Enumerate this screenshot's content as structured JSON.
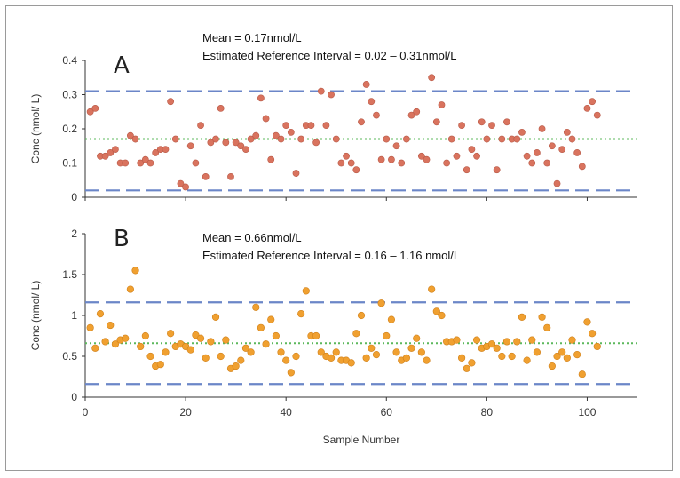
{
  "chart_data": [
    {
      "type": "scatter",
      "panel_letter": "A",
      "annotations": [
        "Mean = 0.17nmol/L",
        "Estimated Reference Interval = 0.02 – 0.31nmol/L"
      ],
      "ylabel": "Conc (nmol/ L)",
      "xlabel": "",
      "xlim": [
        0,
        110
      ],
      "ylim": [
        0,
        0.4
      ],
      "yticks": [
        "0",
        "0.1",
        "0.2",
        "0.3",
        "0.4"
      ],
      "reference_lines": [
        {
          "kind": "mean",
          "value": 0.17,
          "style": "dotted",
          "color": "#5cb85c"
        },
        {
          "kind": "upper",
          "value": 0.31,
          "style": "dashed",
          "color": "#6b86c8"
        },
        {
          "kind": "lower",
          "value": 0.02,
          "style": "dashed",
          "color": "#6b86c8"
        }
      ],
      "marker_color": "#d9735e",
      "x": [
        1,
        2,
        3,
        4,
        5,
        6,
        7,
        8,
        9,
        10,
        11,
        12,
        13,
        14,
        15,
        16,
        17,
        18,
        19,
        20,
        21,
        22,
        23,
        24,
        25,
        26,
        27,
        28,
        29,
        30,
        31,
        32,
        33,
        34,
        35,
        36,
        37,
        38,
        39,
        40,
        41,
        42,
        43,
        44,
        45,
        46,
        47,
        48,
        49,
        50,
        51,
        52,
        53,
        54,
        55,
        56,
        57,
        58,
        59,
        60,
        61,
        62,
        63,
        64,
        65,
        66,
        67,
        68,
        69,
        70,
        71,
        72,
        73,
        74,
        75,
        76,
        77,
        78,
        79,
        80,
        81,
        82,
        83,
        84,
        85,
        86,
        87,
        88,
        89,
        90,
        91,
        92,
        93,
        94,
        95,
        96,
        97,
        98,
        99,
        100,
        101,
        102
      ],
      "y": [
        0.25,
        0.26,
        0.12,
        0.12,
        0.13,
        0.14,
        0.1,
        0.1,
        0.18,
        0.17,
        0.1,
        0.11,
        0.1,
        0.13,
        0.14,
        0.14,
        0.28,
        0.17,
        0.04,
        0.03,
        0.15,
        0.1,
        0.21,
        0.06,
        0.16,
        0.17,
        0.26,
        0.16,
        0.06,
        0.16,
        0.15,
        0.14,
        0.17,
        0.18,
        0.29,
        0.23,
        0.11,
        0.18,
        0.17,
        0.21,
        0.19,
        0.07,
        0.17,
        0.21,
        0.21,
        0.16,
        0.31,
        0.21,
        0.3,
        0.17,
        0.1,
        0.12,
        0.1,
        0.08,
        0.22,
        0.33,
        0.28,
        0.24,
        0.11,
        0.17,
        0.11,
        0.15,
        0.1,
        0.17,
        0.24,
        0.25,
        0.12,
        0.11,
        0.35,
        0.22,
        0.27,
        0.1,
        0.17,
        0.12,
        0.21,
        0.08,
        0.14,
        0.12,
        0.22,
        0.17,
        0.21,
        0.08,
        0.17,
        0.22,
        0.17,
        0.17,
        0.19,
        0.12,
        0.1,
        0.13,
        0.2,
        0.1,
        0.15,
        0.04,
        0.14,
        0.19,
        0.17,
        0.13,
        0.09,
        0.26,
        0.28,
        0.24
      ]
    },
    {
      "type": "scatter",
      "panel_letter": "B",
      "annotations": [
        "Mean = 0.66nmol/L",
        "Estimated Reference Interval = 0.16 – 1.16 nmol/L"
      ],
      "ylabel": "Conc (nmol/ L)",
      "xlabel": "Sample Number",
      "xlim": [
        0,
        110
      ],
      "ylim": [
        0,
        2
      ],
      "yticks": [
        "0",
        "0.5",
        "1",
        "1.5",
        "2"
      ],
      "xticks": [
        "0",
        "20",
        "40",
        "60",
        "80",
        "100"
      ],
      "reference_lines": [
        {
          "kind": "mean",
          "value": 0.66,
          "style": "dotted",
          "color": "#5cb85c"
        },
        {
          "kind": "upper",
          "value": 1.16,
          "style": "dashed",
          "color": "#6b86c8"
        },
        {
          "kind": "lower",
          "value": 0.16,
          "style": "dashed",
          "color": "#6b86c8"
        }
      ],
      "marker_color": "#f0a030",
      "x": [
        1,
        2,
        3,
        4,
        5,
        6,
        7,
        8,
        9,
        10,
        11,
        12,
        13,
        14,
        15,
        16,
        17,
        18,
        19,
        20,
        21,
        22,
        23,
        24,
        25,
        26,
        27,
        28,
        29,
        30,
        31,
        32,
        33,
        34,
        35,
        36,
        37,
        38,
        39,
        40,
        41,
        42,
        43,
        44,
        45,
        46,
        47,
        48,
        49,
        50,
        51,
        52,
        53,
        54,
        55,
        56,
        57,
        58,
        59,
        60,
        61,
        62,
        63,
        64,
        65,
        66,
        67,
        68,
        69,
        70,
        71,
        72,
        73,
        74,
        75,
        76,
        77,
        78,
        79,
        80,
        81,
        82,
        83,
        84,
        85,
        86,
        87,
        88,
        89,
        90,
        91,
        92,
        93,
        94,
        95,
        96,
        97,
        98,
        99,
        100,
        101,
        102
      ],
      "y": [
        0.85,
        0.6,
        1.02,
        0.68,
        0.88,
        0.65,
        0.7,
        0.72,
        1.32,
        1.55,
        0.62,
        0.75,
        0.5,
        0.38,
        0.4,
        0.55,
        0.78,
        0.62,
        0.65,
        0.62,
        0.58,
        0.76,
        0.72,
        0.48,
        0.68,
        0.98,
        0.5,
        0.7,
        0.35,
        0.38,
        0.45,
        0.6,
        0.55,
        1.1,
        0.85,
        0.65,
        0.95,
        0.75,
        0.55,
        0.45,
        0.3,
        0.5,
        1.02,
        1.3,
        0.75,
        0.75,
        0.55,
        0.5,
        0.48,
        0.55,
        0.45,
        0.45,
        0.42,
        0.78,
        1.0,
        0.48,
        0.6,
        0.52,
        1.15,
        0.75,
        0.95,
        0.55,
        0.45,
        0.48,
        0.6,
        0.72,
        0.55,
        0.45,
        1.32,
        1.05,
        1.0,
        0.68,
        0.68,
        0.7,
        0.48,
        0.35,
        0.42,
        0.7,
        0.6,
        0.62,
        0.65,
        0.6,
        0.5,
        0.68,
        0.5,
        0.68,
        0.98,
        0.45,
        0.7,
        0.55,
        0.98,
        0.85,
        0.38,
        0.5,
        0.55,
        0.48,
        0.7,
        0.52,
        0.28,
        0.92,
        0.78,
        0.62
      ]
    }
  ]
}
